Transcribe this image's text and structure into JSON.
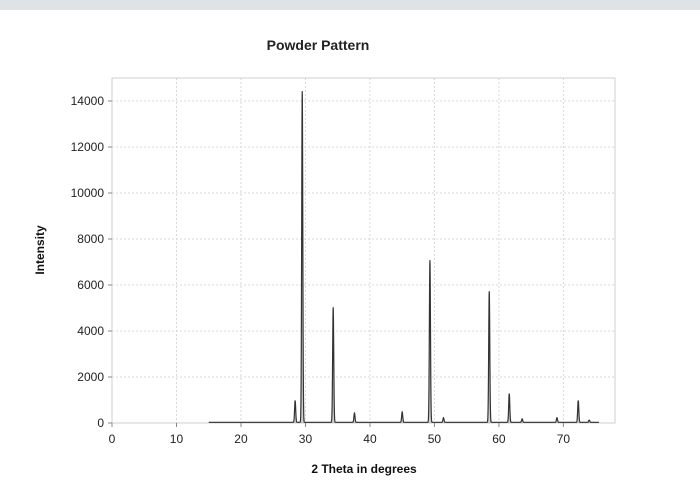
{
  "colors": {
    "top_strip": "#dfe3e6",
    "grid": "#d8d8d8",
    "axis": "#cfcfcf",
    "line": "#333333",
    "fill": "#7a7a7a"
  },
  "chart_data": {
    "type": "line",
    "title": "Powder Pattern",
    "xlabel": "2 Theta in degrees",
    "ylabel": "Intensity",
    "xlim": [
      0,
      78
    ],
    "ylim": [
      0,
      15000
    ],
    "x_ticks": [
      0,
      10,
      20,
      30,
      40,
      50,
      60,
      70
    ],
    "y_ticks": [
      0,
      2000,
      4000,
      6000,
      8000,
      10000,
      12000,
      14000
    ],
    "grid": true,
    "legend": "none",
    "range": [
      15,
      75.5
    ],
    "baseline": 30,
    "peak_width": 0.12,
    "peaks": [
      {
        "x": 28.4,
        "y": 950
      },
      {
        "x": 29.5,
        "y": 14400
      },
      {
        "x": 34.3,
        "y": 5000
      },
      {
        "x": 37.6,
        "y": 400
      },
      {
        "x": 45.0,
        "y": 450
      },
      {
        "x": 49.3,
        "y": 7050
      },
      {
        "x": 51.4,
        "y": 200
      },
      {
        "x": 58.5,
        "y": 5700
      },
      {
        "x": 61.6,
        "y": 1250
      },
      {
        "x": 63.6,
        "y": 150
      },
      {
        "x": 69.0,
        "y": 200
      },
      {
        "x": 72.3,
        "y": 950
      },
      {
        "x": 74.0,
        "y": 100
      }
    ]
  }
}
